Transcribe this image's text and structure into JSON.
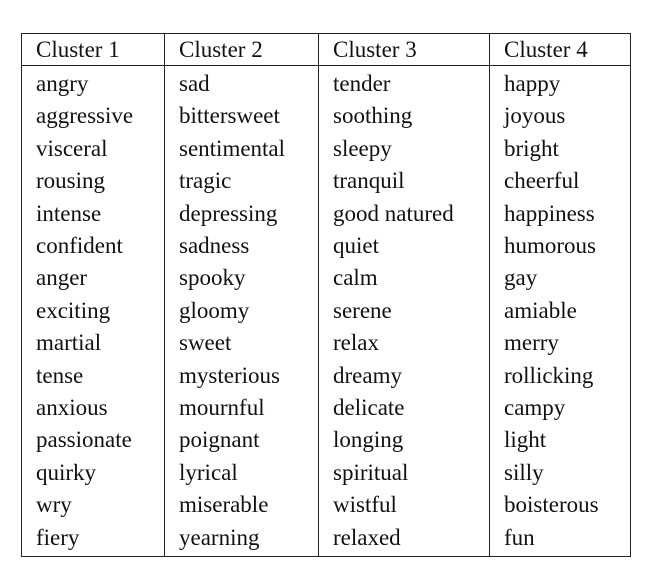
{
  "table": {
    "headers": [
      "Cluster 1",
      "Cluster 2",
      "Cluster 3",
      "Cluster 4"
    ],
    "rows": [
      [
        "angry",
        "sad",
        "tender",
        "happy"
      ],
      [
        "aggressive",
        "bittersweet",
        "soothing",
        "joyous"
      ],
      [
        "visceral",
        "sentimental",
        "sleepy",
        "bright"
      ],
      [
        "rousing",
        "tragic",
        "tranquil",
        "cheerful"
      ],
      [
        "intense",
        "depressing",
        "good natured",
        "happiness"
      ],
      [
        "confident",
        "sadness",
        "quiet",
        "humorous"
      ],
      [
        "anger",
        "spooky",
        "calm",
        "gay"
      ],
      [
        "exciting",
        "gloomy",
        "serene",
        "amiable"
      ],
      [
        "martial",
        "sweet",
        "relax",
        "merry"
      ],
      [
        "tense",
        "mysterious",
        "dreamy",
        "rollicking"
      ],
      [
        "anxious",
        "mournful",
        "delicate",
        "campy"
      ],
      [
        "passionate",
        "poignant",
        "longing",
        "light"
      ],
      [
        "quirky",
        "lyrical",
        "spiritual",
        "silly"
      ],
      [
        "wry",
        "miserable",
        "wistful",
        "boisterous"
      ],
      [
        "fiery",
        "yearning",
        "relaxed",
        "fun"
      ]
    ]
  }
}
